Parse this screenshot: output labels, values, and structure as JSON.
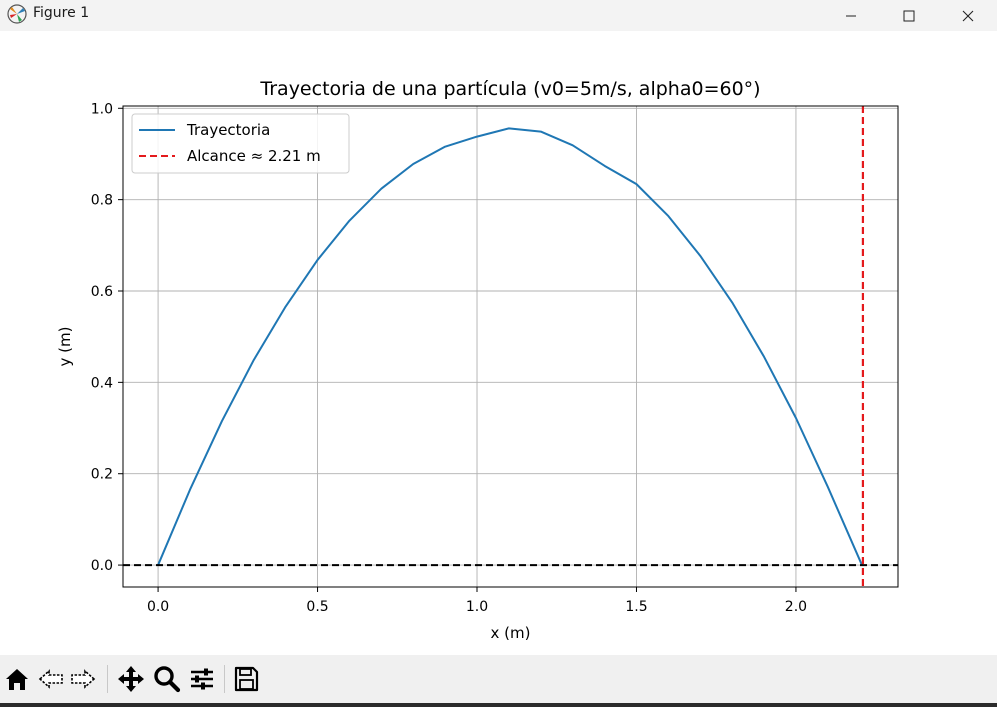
{
  "window": {
    "title": "Figure 1",
    "icon": "matplotlib-icon",
    "controls": [
      "minimize-icon",
      "maximize-icon",
      "close-icon"
    ]
  },
  "toolbar": {
    "buttons": [
      "home-icon",
      "back-icon",
      "forward-icon",
      "pan-icon",
      "zoom-icon",
      "configure-subplots-icon",
      "save-icon"
    ]
  },
  "colors": {
    "trajectory": "#1f77b4",
    "range_line": "#e41a1c",
    "ground_line": "#000000",
    "grid": "#b0b0b0"
  },
  "chart_data": {
    "type": "line",
    "title": "Trayectoria de una partícula (v0=5m/s, alpha0=60°)",
    "xlabel": "x (m)",
    "ylabel": "y (m)",
    "xlim": [
      -0.11,
      2.32
    ],
    "ylim": [
      -0.048,
      1.005
    ],
    "xticks": [
      0.0,
      0.5,
      1.0,
      1.5,
      2.0
    ],
    "xtick_labels": [
      "0.0",
      "0.5",
      "1.0",
      "1.5",
      "2.0"
    ],
    "yticks": [
      0.0,
      0.2,
      0.4,
      0.6,
      0.8,
      1.0
    ],
    "ytick_labels": [
      "0.0",
      "0.2",
      "0.4",
      "0.6",
      "0.8",
      "1.0"
    ],
    "grid": true,
    "legend_position": "upper-left",
    "series": [
      {
        "name": "Trayectoria",
        "style": "solid",
        "x": [
          0.0,
          0.1,
          0.2,
          0.3,
          0.4,
          0.5,
          0.6,
          0.7,
          0.8,
          0.9,
          1.0,
          1.1,
          1.2,
          1.3,
          1.4,
          1.5,
          1.6,
          1.7,
          1.8,
          1.9,
          2.0,
          2.1,
          2.207
        ],
        "y": [
          0.0,
          0.165,
          0.315,
          0.449,
          0.566,
          0.668,
          0.754,
          0.824,
          0.878,
          0.916,
          0.938,
          0.956,
          0.949,
          0.919,
          0.874,
          0.834,
          0.764,
          0.677,
          0.575,
          0.456,
          0.322,
          0.171,
          0.0
        ]
      },
      {
        "name": "Alcance ≈ 2.21 m",
        "style": "dashed",
        "vertical_x": 2.21
      },
      {
        "style": "dashed",
        "horizontal_y": 0.0
      }
    ]
  }
}
